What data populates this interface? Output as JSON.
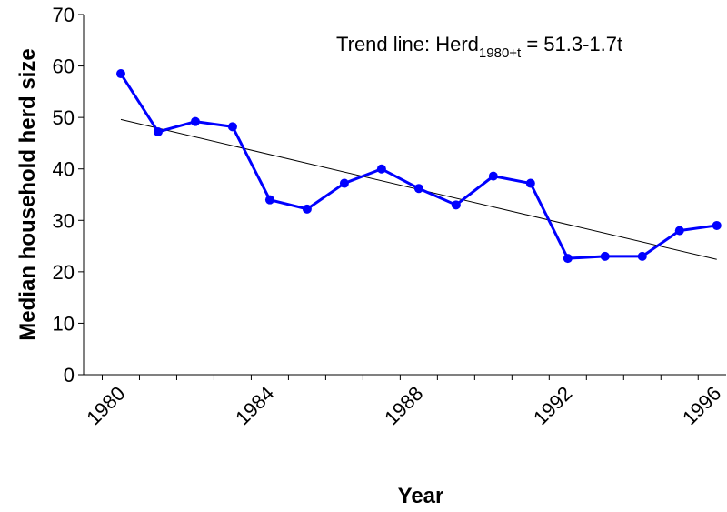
{
  "chart_data": {
    "type": "line",
    "x_label": "Year",
    "y_label": "Median household herd size",
    "categories": [
      "1980",
      null,
      null,
      null,
      "1984",
      null,
      null,
      null,
      "1988",
      null,
      null,
      null,
      "1992",
      null,
      null,
      null,
      "1996"
    ],
    "series": [
      {
        "name": "Median household herd size",
        "color": "#0000ff",
        "values": [
          58.5,
          47.2,
          49.2,
          48.2,
          34,
          32.2,
          37.2,
          40,
          36.2,
          33,
          38.6,
          37.2,
          22.6,
          23,
          23,
          28,
          29
        ]
      }
    ],
    "trend": {
      "intercept": 51.3,
      "slope": -1.7,
      "color": "#000000"
    },
    "annotation": {
      "prefix": "Trend line: Herd",
      "subscript": "1980+t",
      "suffix": " = 51.3-1.7t"
    },
    "ylim": [
      0,
      70
    ],
    "yticks": [
      0,
      10,
      20,
      30,
      40,
      50,
      60,
      70
    ],
    "grid": false
  }
}
